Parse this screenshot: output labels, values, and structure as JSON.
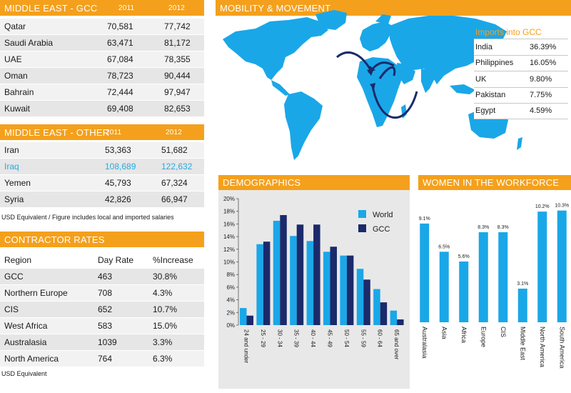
{
  "gcc": {
    "title": "MIDDLE EAST - GCC",
    "col_2011": "2011",
    "col_2012": "2012",
    "rows": [
      {
        "name": "Qatar",
        "v2011": "70,581",
        "v2012": "77,742"
      },
      {
        "name": "Saudi Arabia",
        "v2011": "63,471",
        "v2012": "81,172"
      },
      {
        "name": "UAE",
        "v2011": "67,084",
        "v2012": "78,355"
      },
      {
        "name": "Oman",
        "v2011": "78,723",
        "v2012": "90,444"
      },
      {
        "name": "Bahrain",
        "v2011": "72,444",
        "v2012": "97,947"
      },
      {
        "name": "Kuwait",
        "v2011": "69,408",
        "v2012": "82,653"
      }
    ]
  },
  "other": {
    "title": "MIDDLE EAST - OTHER",
    "col_2011": "2011",
    "col_2012": "2012",
    "rows": [
      {
        "name": "Iran",
        "v2011": "53,363",
        "v2012": "51,682"
      },
      {
        "name": "Iraq",
        "v2011": "108,689",
        "v2012": "122,632"
      },
      {
        "name": "Yemen",
        "v2011": "45,793",
        "v2012": "67,324"
      },
      {
        "name": "Syria",
        "v2011": "42,826",
        "v2012": "66,947"
      }
    ],
    "note": "USD Equivalent /  Figure includes local and imported salaries"
  },
  "contractor": {
    "title": "CONTRACTOR RATES",
    "headers": {
      "region": "Region",
      "day_rate": "Day Rate",
      "increase": "%Increase"
    },
    "rows": [
      {
        "region": "GCC",
        "rate": "463",
        "increase": "30.8%"
      },
      {
        "region": "Northern Europe",
        "rate": "708",
        "increase": "4.3%"
      },
      {
        "region": "CIS",
        "rate": "652",
        "increase": "10.7%"
      },
      {
        "region": "West Africa",
        "rate": "583",
        "increase": "15.0%"
      },
      {
        "region": "Australasia",
        "rate": "1039",
        "increase": "3.3%"
      },
      {
        "region": "North America",
        "rate": "764",
        "increase": "6.3%"
      }
    ],
    "note": "USD Equivalent"
  },
  "mobility": {
    "title": "MOBILITY & MOVEMENT",
    "imports_title": "Imports into GCC",
    "imports": [
      {
        "country": "India",
        "pct": "36.39%"
      },
      {
        "country": "Philippines",
        "pct": "16.05%"
      },
      {
        "country": "UK",
        "pct": "9.80%"
      },
      {
        "country": "Pakistan",
        "pct": "7.75%"
      },
      {
        "country": "Egypt",
        "pct": "4.59%"
      }
    ]
  },
  "colors": {
    "orange": "#f4a01c",
    "world_blue": "#1aa7e8",
    "gcc_navy": "#1b2a6b",
    "highlight_blue": "#29a9e0"
  },
  "chart_data": [
    {
      "type": "bar",
      "title": "DEMOGRAPHICS",
      "categories": [
        "24 and under",
        "25 - 29",
        "30 - 34",
        "35 - 39",
        "40 - 44",
        "45 - 49",
        "50 - 54",
        "55 - 59",
        "60 - 64",
        "65 and over"
      ],
      "series": [
        {
          "name": "World",
          "values": [
            2.7,
            12.8,
            16.5,
            14.1,
            13.3,
            11.6,
            11.0,
            8.9,
            5.7,
            2.3
          ]
        },
        {
          "name": "GCC",
          "values": [
            1.5,
            13.2,
            17.4,
            15.9,
            15.9,
            12.4,
            11.0,
            7.2,
            3.6,
            0.9
          ]
        }
      ],
      "ylim": [
        0,
        20
      ],
      "yticks": [
        "0%",
        "2%",
        "4%",
        "6%",
        "8%",
        "10%",
        "12%",
        "14%",
        "16%",
        "18%",
        "20%"
      ],
      "legend": "top-right",
      "grid": false
    },
    {
      "type": "bar",
      "title": "WOMEN IN THE WORKFORCE",
      "categories": [
        "Australasia",
        "Asia",
        "Africa",
        "Europe",
        "CIS",
        "Middle East",
        "North America",
        "South America"
      ],
      "values": [
        9.1,
        6.5,
        5.6,
        8.3,
        8.3,
        3.1,
        10.2,
        10.3
      ],
      "labels": [
        "9.1%",
        "6.5%",
        "5.6%",
        "8.3%",
        "8.3%",
        "3.1%",
        "10.2%",
        "10.3%"
      ],
      "grid": false
    }
  ]
}
